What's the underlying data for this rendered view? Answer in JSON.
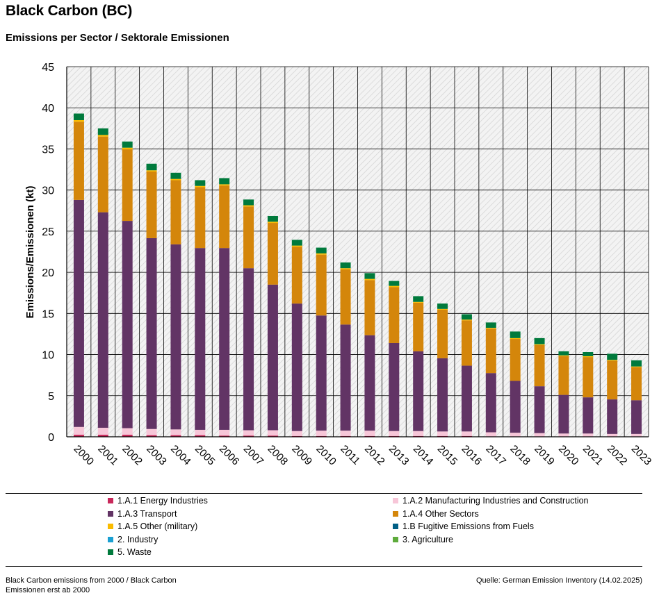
{
  "header": {
    "title": "Black Carbon (BC)",
    "subtitle": "Emissions per Sector / Sektorale Emissionen"
  },
  "chart_data": {
    "type": "bar",
    "stacked": true,
    "title": "",
    "xlabel": "",
    "ylabel": "Emissions/Emissionen (kt)",
    "ylim": [
      0,
      45
    ],
    "yticks": [
      0,
      5,
      10,
      15,
      20,
      25,
      30,
      35,
      40,
      45
    ],
    "grid": true,
    "legend_position": "bottom",
    "categories": [
      "2000",
      "2001",
      "2002",
      "2003",
      "2004",
      "2005",
      "2006",
      "2007",
      "2008",
      "2009",
      "2010",
      "2011",
      "2012",
      "2013",
      "2014",
      "2015",
      "2016",
      "2017",
      "2018",
      "2019",
      "2020",
      "2021",
      "2022",
      "2023"
    ],
    "series": [
      {
        "name": "1.A.1 Energy Industries",
        "color": "#c8285a",
        "values": [
          0.25,
          0.25,
          0.25,
          0.2,
          0.2,
          0.2,
          0.15,
          0.15,
          0.15,
          0.1,
          0.1,
          0.1,
          0.1,
          0.1,
          0.1,
          0.1,
          0.1,
          0.05,
          0.05,
          0.05,
          0.05,
          0.05,
          0.05,
          0.05
        ]
      },
      {
        "name": "1.A.2 Manufacturing Industries and Construction",
        "color": "#f7c6d8",
        "values": [
          0.95,
          0.85,
          0.8,
          0.75,
          0.7,
          0.65,
          0.7,
          0.65,
          0.65,
          0.6,
          0.65,
          0.65,
          0.65,
          0.6,
          0.6,
          0.55,
          0.55,
          0.5,
          0.45,
          0.4,
          0.35,
          0.35,
          0.3,
          0.3
        ]
      },
      {
        "name": "1.A.3 Transport",
        "color": "#623465",
        "values": [
          27.6,
          26.2,
          25.2,
          23.2,
          22.5,
          22.1,
          22.1,
          19.7,
          17.7,
          15.5,
          14.0,
          12.9,
          11.6,
          10.7,
          9.7,
          8.9,
          8.0,
          7.2,
          6.3,
          5.7,
          4.7,
          4.4,
          4.2,
          4.1
        ]
      },
      {
        "name": "1.A.4 Other Sectors",
        "color": "#d4860b",
        "values": [
          9.5,
          9.2,
          8.7,
          8.1,
          7.8,
          7.4,
          7.6,
          7.5,
          7.5,
          6.9,
          7.4,
          6.7,
          6.7,
          6.8,
          5.9,
          5.9,
          5.5,
          5.4,
          5.1,
          5.0,
          4.7,
          4.9,
          4.7,
          4.0
        ]
      },
      {
        "name": "1.A.5 Other (military)",
        "color": "#fabb00",
        "values": [
          0.2,
          0.2,
          0.2,
          0.15,
          0.15,
          0.15,
          0.15,
          0.15,
          0.15,
          0.15,
          0.15,
          0.15,
          0.15,
          0.15,
          0.1,
          0.1,
          0.1,
          0.1,
          0.1,
          0.1,
          0.1,
          0.1,
          0.1,
          0.1
        ]
      },
      {
        "name": "1.B Fugitive Emissions from Fuels",
        "color": "#005f85",
        "values": [
          0,
          0,
          0,
          0,
          0,
          0,
          0,
          0,
          0,
          0,
          0,
          0,
          0,
          0,
          0,
          0,
          0,
          0,
          0,
          0,
          0,
          0,
          0,
          0
        ]
      },
      {
        "name": "2. Industry",
        "color": "#1aa0d2",
        "values": [
          0,
          0,
          0,
          0,
          0,
          0,
          0,
          0,
          0,
          0,
          0,
          0,
          0,
          0,
          0,
          0,
          0,
          0,
          0,
          0,
          0,
          0,
          0,
          0
        ]
      },
      {
        "name": "3. Agriculture",
        "color": "#5eab3c",
        "values": [
          0,
          0,
          0,
          0,
          0,
          0,
          0,
          0,
          0,
          0,
          0,
          0,
          0,
          0,
          0,
          0,
          0,
          0,
          0,
          0,
          0,
          0,
          0,
          0
        ]
      },
      {
        "name": "5. Waste",
        "color": "#007a3c",
        "values": [
          0.8,
          0.8,
          0.75,
          0.8,
          0.75,
          0.7,
          0.75,
          0.7,
          0.7,
          0.7,
          0.7,
          0.7,
          0.7,
          0.6,
          0.7,
          0.65,
          0.65,
          0.65,
          0.8,
          0.75,
          0.5,
          0.5,
          0.75,
          0.75
        ]
      }
    ]
  },
  "footer": {
    "note": "Black Carbon emissions from 2000 / Black Carbon Emissionen erst ab 2000",
    "source": "Quelle: German Emission Inventory (14.02.2025)"
  }
}
